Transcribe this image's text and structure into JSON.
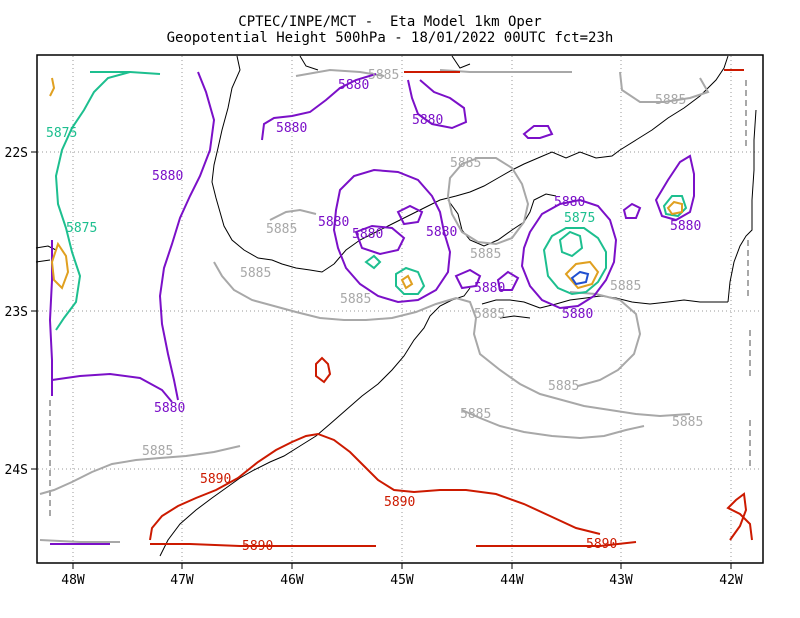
{
  "title_line1": "CPTEC/INPE/MCT -  Eta Model 1km Oper",
  "title_line2": "Geopotential Height 500hPa - 18/01/2022 00UTC fct=23h",
  "lon_ticks": [
    "48W",
    "47W",
    "46W",
    "45W",
    "44W",
    "43W",
    "42W"
  ],
  "lat_ticks": [
    "22S",
    "23S",
    "24S"
  ],
  "colors": {
    "c5875": "#1dbf8f",
    "c5880": "#7b10c8",
    "c5885": "#a8a8a8",
    "c5890": "#cc1a00",
    "c5870": "#e0a020",
    "c5865": "#2050d0",
    "coast": "#000000",
    "grid": "#808080"
  },
  "contour_labels": [
    {
      "text": "5885"
    },
    {
      "text": "5885"
    },
    {
      "text": "5885"
    },
    {
      "text": "5885"
    },
    {
      "text": "5885"
    },
    {
      "text": "5885"
    },
    {
      "text": "5885"
    },
    {
      "text": "5885"
    },
    {
      "text": "5885"
    },
    {
      "text": "5885"
    },
    {
      "text": "5885"
    },
    {
      "text": "5885"
    },
    {
      "text": "5880"
    },
    {
      "text": "5880"
    },
    {
      "text": "5880"
    },
    {
      "text": "5880"
    },
    {
      "text": "5880"
    },
    {
      "text": "5880"
    },
    {
      "text": "5880"
    },
    {
      "text": "5880"
    },
    {
      "text": "5880"
    },
    {
      "text": "5880"
    },
    {
      "text": "5880"
    },
    {
      "text": "5875"
    },
    {
      "text": "5875"
    },
    {
      "text": "5875"
    },
    {
      "text": "5890"
    },
    {
      "text": "5890"
    },
    {
      "text": "5890"
    },
    {
      "text": "5890"
    }
  ]
}
